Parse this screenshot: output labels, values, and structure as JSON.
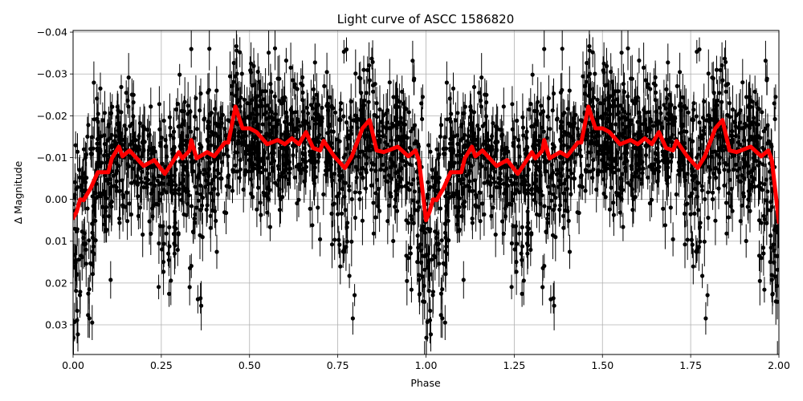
{
  "figure": {
    "title": "Light curve of ASCC 1586820",
    "xlabel": "Phase",
    "ylabel": "Δ Magnitude"
  },
  "chart_data": {
    "type": "scatter",
    "title": "Light curve of ASCC 1586820",
    "xlabel": "Phase",
    "ylabel": "Δ Magnitude",
    "xlim": [
      0.0,
      2.0
    ],
    "ylim": [
      0.0371,
      -0.0404
    ],
    "y_inverted": true,
    "grid": true,
    "legend": null,
    "x_ticks": [
      "0.00",
      "0.25",
      "0.50",
      "0.75",
      "1.00",
      "1.25",
      "1.50",
      "1.75",
      "2.00"
    ],
    "x_tick_values": [
      0.0,
      0.25,
      0.5,
      0.75,
      1.0,
      1.25,
      1.5,
      1.75,
      2.0
    ],
    "y_ticks": [
      "−0.04",
      "−0.03",
      "−0.02",
      "−0.01",
      "0.00",
      "0.01",
      "0.02",
      "0.03"
    ],
    "y_tick_values": [
      -0.04,
      -0.03,
      -0.02,
      -0.01,
      0.0,
      0.01,
      0.02,
      0.03
    ],
    "series": [
      {
        "name": "observations",
        "kind": "errorbar-scatter",
        "color": "#000000",
        "description": "Dense phase-folded photometry, repeated for phase 0-1 and 1-2; points scatter roughly between -0.04 and +0.037 with typical errorbars ~0.003-0.005; envelope dips (fainter, toward +0.03) near phases 0.02, 0.27, 0.35, 0.76, 0.98 and repeats",
        "scatter_center": -0.01,
        "scatter_sigma": 0.01
      },
      {
        "name": "binned mean",
        "kind": "line",
        "color": "#ff0000",
        "x": [
          0.0,
          0.01,
          0.02,
          0.03,
          0.04,
          0.05,
          0.07,
          0.1,
          0.11,
          0.13,
          0.14,
          0.16,
          0.2,
          0.23,
          0.26,
          0.3,
          0.31,
          0.33,
          0.335,
          0.35,
          0.38,
          0.4,
          0.43,
          0.44,
          0.46,
          0.48,
          0.5,
          0.52,
          0.55,
          0.58,
          0.6,
          0.62,
          0.64,
          0.66,
          0.68,
          0.7,
          0.71,
          0.74,
          0.77,
          0.79,
          0.82,
          0.84,
          0.86,
          0.88,
          0.92,
          0.95,
          0.97,
          0.98,
          1.0,
          1.01,
          1.02,
          1.03,
          1.04,
          1.05,
          1.07,
          1.1,
          1.11,
          1.13,
          1.14,
          1.16,
          1.2,
          1.23,
          1.26,
          1.3,
          1.31,
          1.33,
          1.335,
          1.35,
          1.38,
          1.4,
          1.43,
          1.44,
          1.46,
          1.48,
          1.5,
          1.52,
          1.55,
          1.58,
          1.6,
          1.62,
          1.64,
          1.66,
          1.68,
          1.7,
          1.71,
          1.74,
          1.77,
          1.79,
          1.82,
          1.84,
          1.86,
          1.88,
          1.92,
          1.95,
          1.97,
          1.98,
          2.0
        ],
        "y": [
          0.0045,
          0.003,
          0.0,
          0.0002,
          -0.0013,
          -0.0027,
          -0.0065,
          -0.0065,
          -0.0098,
          -0.0126,
          -0.0103,
          -0.0117,
          -0.008,
          -0.0094,
          -0.0061,
          -0.0113,
          -0.0098,
          -0.0117,
          -0.0142,
          -0.0098,
          -0.0113,
          -0.0103,
          -0.0136,
          -0.0136,
          -0.0222,
          -0.017,
          -0.017,
          -0.0161,
          -0.0132,
          -0.0142,
          -0.0132,
          -0.0146,
          -0.0132,
          -0.0161,
          -0.0123,
          -0.0117,
          -0.014,
          -0.0103,
          -0.0075,
          -0.0103,
          -0.017,
          -0.019,
          -0.0117,
          -0.0113,
          -0.0126,
          -0.0103,
          -0.0117,
          -0.0094,
          0.005,
          0.003,
          0.0,
          0.0002,
          -0.0013,
          -0.0027,
          -0.0065,
          -0.0065,
          -0.0098,
          -0.0126,
          -0.0103,
          -0.0117,
          -0.008,
          -0.0094,
          -0.0061,
          -0.0113,
          -0.0098,
          -0.0117,
          -0.0142,
          -0.0098,
          -0.0113,
          -0.0103,
          -0.0136,
          -0.0136,
          -0.0222,
          -0.017,
          -0.017,
          -0.0161,
          -0.0132,
          -0.0142,
          -0.0132,
          -0.0146,
          -0.0132,
          -0.0161,
          -0.0123,
          -0.0117,
          -0.014,
          -0.0103,
          -0.0075,
          -0.0103,
          -0.017,
          -0.019,
          -0.0117,
          -0.0113,
          -0.0126,
          -0.0103,
          -0.0117,
          -0.0094,
          0.0055
        ]
      }
    ]
  }
}
